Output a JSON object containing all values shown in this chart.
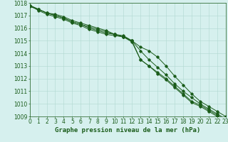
{
  "title": "Graphe pression niveau de la mer (hPa)",
  "background_color": "#d6f0ee",
  "grid_color": "#b0d8d0",
  "line_color": "#1a5c1a",
  "xlim": [
    0,
    23
  ],
  "ylim": [
    1009,
    1018
  ],
  "title_fontsize": 6.5,
  "tick_fontsize": 5.5,
  "hours": [
    0,
    1,
    2,
    3,
    4,
    5,
    6,
    7,
    8,
    9,
    10,
    11,
    12,
    13,
    14,
    15,
    16,
    17,
    18,
    19,
    20,
    21,
    22,
    23
  ],
  "series": [
    [
      1017.7,
      1017.5,
      1017.2,
      1017.1,
      1016.9,
      1016.6,
      1016.4,
      1016.2,
      1016.0,
      1015.8,
      1015.5,
      1015.3,
      1015.0,
      1014.5,
      1014.2,
      1013.7,
      1013.0,
      1012.2,
      1011.5,
      1010.8,
      1010.2,
      1009.8,
      1009.4,
      1009.0
    ],
    [
      1017.8,
      1017.5,
      1017.2,
      1017.0,
      1016.8,
      1016.5,
      1016.3,
      1016.1,
      1015.9,
      1015.7,
      1015.5,
      1015.3,
      1015.0,
      1014.2,
      1013.5,
      1012.9,
      1012.3,
      1011.6,
      1011.0,
      1010.5,
      1010.0,
      1009.6,
      1009.2,
      1008.8
    ],
    [
      1017.8,
      1017.5,
      1017.2,
      1017.0,
      1016.8,
      1016.5,
      1016.3,
      1016.0,
      1015.8,
      1015.6,
      1015.5,
      1015.4,
      1015.0,
      1013.5,
      1013.0,
      1012.5,
      1012.0,
      1011.4,
      1010.8,
      1010.2,
      1009.9,
      1009.5,
      1009.1,
      1008.7
    ],
    [
      1017.8,
      1017.4,
      1017.1,
      1016.9,
      1016.7,
      1016.4,
      1016.2,
      1015.9,
      1015.7,
      1015.5,
      1015.4,
      1015.3,
      1014.9,
      1013.5,
      1013.0,
      1012.4,
      1011.9,
      1011.3,
      1010.7,
      1010.1,
      1009.8,
      1009.4,
      1009.0,
      1008.7
    ]
  ]
}
